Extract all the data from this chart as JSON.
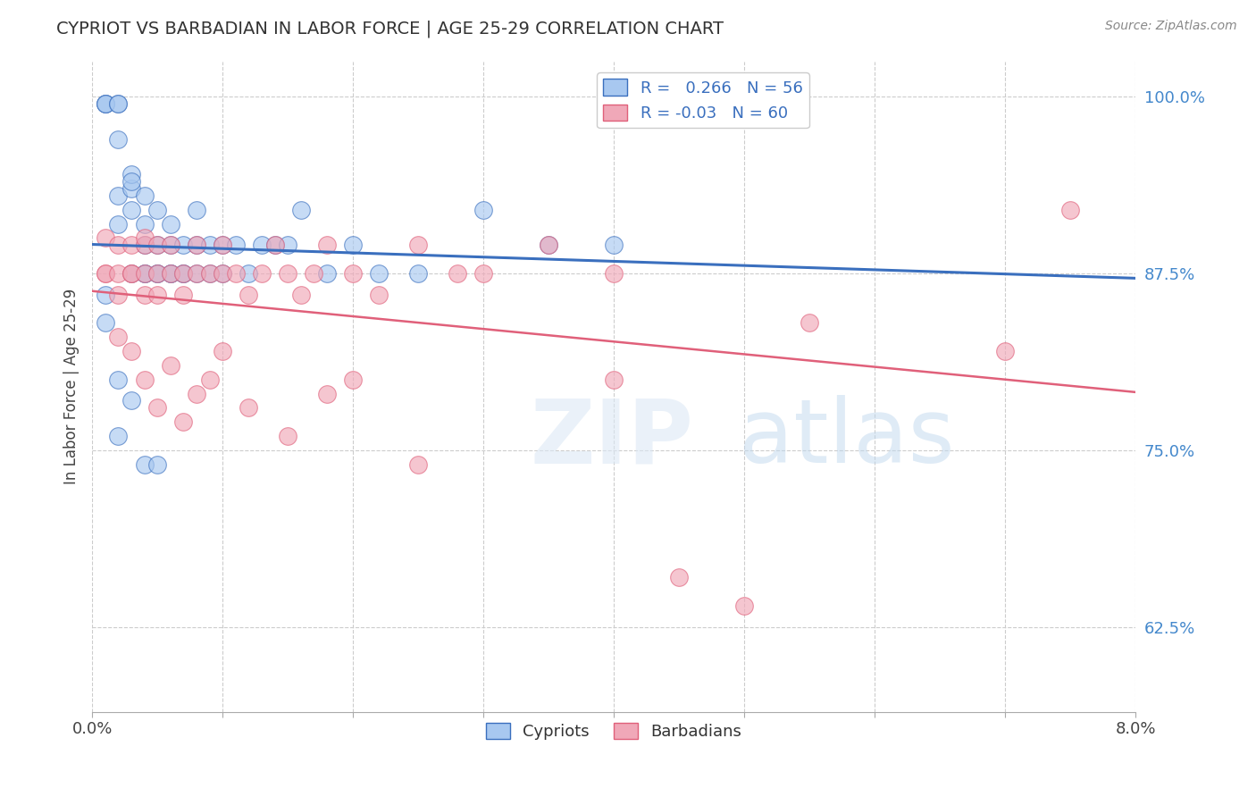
{
  "title": "CYPRIOT VS BARBADIAN IN LABOR FORCE | AGE 25-29 CORRELATION CHART",
  "source_text": "Source: ZipAtlas.com",
  "ylabel": "In Labor Force | Age 25-29",
  "xlim": [
    0.0,
    0.08
  ],
  "ylim": [
    0.565,
    1.025
  ],
  "yticks_right": [
    0.625,
    0.75,
    0.875,
    1.0
  ],
  "yticklabels_right": [
    "62.5%",
    "75.0%",
    "87.5%",
    "100.0%"
  ],
  "blue_R": 0.266,
  "blue_N": 56,
  "pink_R": -0.03,
  "pink_N": 60,
  "blue_color": "#a8c8f0",
  "pink_color": "#f0a8b8",
  "blue_line_color": "#3a6fbe",
  "pink_line_color": "#e0607a",
  "legend_label_blue": "Cypriots",
  "legend_label_pink": "Barbadians",
  "blue_scatter_x": [
    0.001,
    0.001,
    0.001,
    0.002,
    0.002,
    0.002,
    0.002,
    0.002,
    0.003,
    0.003,
    0.003,
    0.003,
    0.003,
    0.004,
    0.004,
    0.004,
    0.004,
    0.004,
    0.005,
    0.005,
    0.005,
    0.005,
    0.006,
    0.006,
    0.006,
    0.006,
    0.007,
    0.007,
    0.007,
    0.008,
    0.008,
    0.008,
    0.009,
    0.009,
    0.01,
    0.01,
    0.011,
    0.012,
    0.013,
    0.014,
    0.015,
    0.016,
    0.018,
    0.02,
    0.022,
    0.025,
    0.03,
    0.035,
    0.04,
    0.001,
    0.001,
    0.002,
    0.002,
    0.003,
    0.004,
    0.005
  ],
  "blue_scatter_y": [
    0.995,
    0.995,
    0.995,
    0.995,
    0.995,
    0.91,
    0.93,
    0.97,
    0.935,
    0.945,
    0.94,
    0.875,
    0.92,
    0.93,
    0.895,
    0.875,
    0.875,
    0.91,
    0.875,
    0.895,
    0.875,
    0.92,
    0.875,
    0.895,
    0.875,
    0.91,
    0.875,
    0.895,
    0.875,
    0.875,
    0.895,
    0.92,
    0.875,
    0.895,
    0.875,
    0.895,
    0.895,
    0.875,
    0.895,
    0.895,
    0.895,
    0.92,
    0.875,
    0.895,
    0.875,
    0.875,
    0.92,
    0.895,
    0.895,
    0.86,
    0.84,
    0.76,
    0.8,
    0.785,
    0.74,
    0.74
  ],
  "pink_scatter_x": [
    0.001,
    0.001,
    0.001,
    0.002,
    0.002,
    0.002,
    0.003,
    0.003,
    0.003,
    0.004,
    0.004,
    0.004,
    0.004,
    0.005,
    0.005,
    0.005,
    0.006,
    0.006,
    0.007,
    0.007,
    0.008,
    0.008,
    0.009,
    0.01,
    0.01,
    0.011,
    0.012,
    0.013,
    0.014,
    0.015,
    0.016,
    0.017,
    0.018,
    0.02,
    0.022,
    0.025,
    0.028,
    0.03,
    0.035,
    0.04,
    0.002,
    0.003,
    0.004,
    0.005,
    0.006,
    0.007,
    0.008,
    0.009,
    0.01,
    0.012,
    0.015,
    0.018,
    0.02,
    0.025,
    0.04,
    0.045,
    0.05,
    0.055,
    0.07,
    0.075
  ],
  "pink_scatter_y": [
    0.875,
    0.875,
    0.9,
    0.875,
    0.895,
    0.86,
    0.875,
    0.895,
    0.875,
    0.875,
    0.895,
    0.86,
    0.9,
    0.895,
    0.875,
    0.86,
    0.875,
    0.895,
    0.875,
    0.86,
    0.875,
    0.895,
    0.875,
    0.875,
    0.895,
    0.875,
    0.86,
    0.875,
    0.895,
    0.875,
    0.86,
    0.875,
    0.895,
    0.875,
    0.86,
    0.895,
    0.875,
    0.875,
    0.895,
    0.875,
    0.83,
    0.82,
    0.8,
    0.78,
    0.81,
    0.77,
    0.79,
    0.8,
    0.82,
    0.78,
    0.76,
    0.79,
    0.8,
    0.74,
    0.8,
    0.66,
    0.64,
    0.84,
    0.82,
    0.92
  ]
}
